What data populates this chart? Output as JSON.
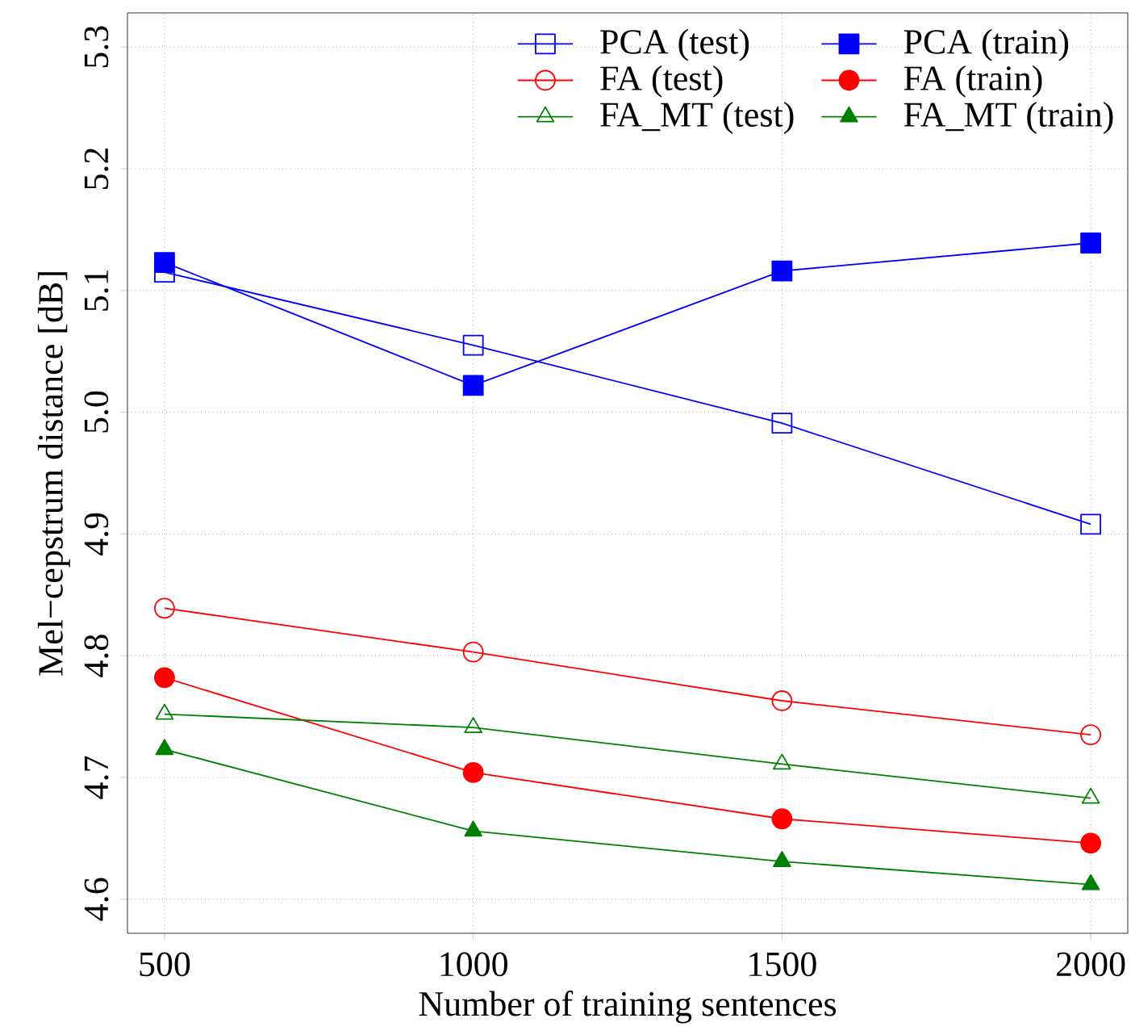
{
  "chart_data": {
    "type": "line",
    "xlabel": "Number of training sentences",
    "ylabel": "Mel−cepstrum distance [dB]",
    "x": [
      500,
      1000,
      1500,
      2000
    ],
    "series": [
      {
        "name": "PCA (test)",
        "color": "#0000ff",
        "marker": "square",
        "values": [
          5.115,
          5.055,
          4.991,
          4.908
        ]
      },
      {
        "name": "PCA (train)",
        "color": "#0000ff",
        "marker": "square",
        "values": [
          5.123,
          5.022,
          5.116,
          5.139
        ]
      },
      {
        "name": "FA (test)",
        "color": "#ff0000",
        "marker": "circle",
        "values": [
          4.839,
          4.803,
          4.763,
          4.735
        ]
      },
      {
        "name": "FA (train)",
        "color": "#ff0000",
        "marker": "circle",
        "values": [
          4.782,
          4.704,
          4.666,
          4.646
        ]
      },
      {
        "name": "FA_MT (test)",
        "color": "#008000",
        "marker": "triangle",
        "values": [
          4.752,
          4.741,
          4.711,
          4.683
        ]
      },
      {
        "name": "FA_MT (train)",
        "color": "#008000",
        "marker": "triangle",
        "values": [
          4.723,
          4.656,
          4.631,
          4.612
        ]
      }
    ],
    "xlim": [
      440,
      2060
    ],
    "ylim": [
      4.572,
      5.328
    ],
    "xticks": [
      500,
      1000,
      1500,
      2000
    ],
    "yticks": [
      {
        "value": 4.6,
        "label": "4.6"
      },
      {
        "value": 4.7,
        "label": "4.7"
      },
      {
        "value": 4.8,
        "label": "4.8"
      },
      {
        "value": 4.9,
        "label": "4.9"
      },
      {
        "value": 5.0,
        "label": "5.0"
      },
      {
        "value": 5.1,
        "label": "5.1"
      },
      {
        "value": 5.2,
        "label": "5.2"
      },
      {
        "value": 5.3,
        "label": "5.3"
      }
    ],
    "grid": true,
    "legend": "top right",
    "line_style": "solid"
  }
}
